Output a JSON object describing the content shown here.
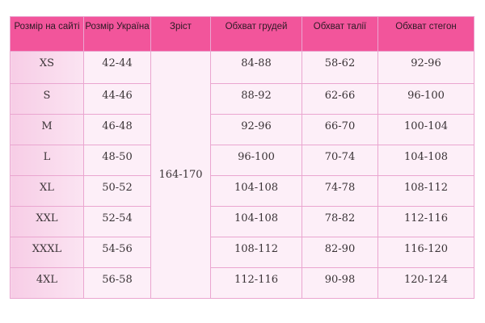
{
  "headers": [
    "Розмір на сайті",
    "Розмір Україна",
    "Зріст",
    "Обхват грудей",
    "Обхват талії",
    "Обхват стегон"
  ],
  "height_value": "164-170",
  "colors": {
    "header": "#f2559b",
    "first_column": "#f7cde6",
    "cell": "#fdeff8",
    "border": "#eaa6d0"
  },
  "rows": [
    {
      "site": "XS",
      "ua": "42-44",
      "chest": "84-88",
      "waist": "58-62",
      "hips": "92-96"
    },
    {
      "site": "S",
      "ua": "44-46",
      "chest": "88-92",
      "waist": "62-66",
      "hips": "96-100"
    },
    {
      "site": "M",
      "ua": "46-48",
      "chest": "92-96",
      "waist": "66-70",
      "hips": "100-104"
    },
    {
      "site": "L",
      "ua": "48-50",
      "chest": "96-100",
      "waist": "70-74",
      "hips": "104-108"
    },
    {
      "site": "XL",
      "ua": "50-52",
      "chest": "104-108",
      "waist": "74-78",
      "hips": "108-112"
    },
    {
      "site": "XXL",
      "ua": "52-54",
      "chest": "104-108",
      "waist": "78-82",
      "hips": "112-116"
    },
    {
      "site": "XXXL",
      "ua": "54-56",
      "chest": "108-112",
      "waist": "82-90",
      "hips": "116-120"
    },
    {
      "site": "4XL",
      "ua": "56-58",
      "chest": "112-116",
      "waist": "90-98",
      "hips": "120-124"
    }
  ]
}
